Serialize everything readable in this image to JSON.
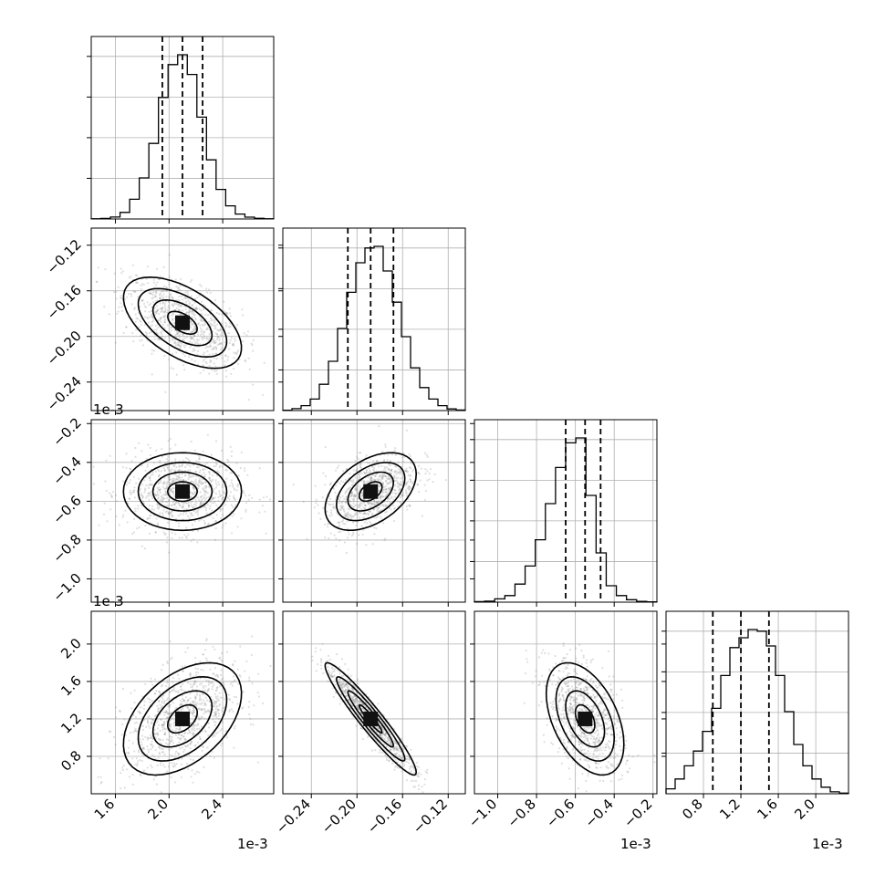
{
  "chart_data": {
    "type": "corner",
    "parameters": [
      {
        "mean": 0.0021,
        "sd": 0.00022,
        "range": [
          0.00142,
          0.00278
        ],
        "ticks": [
          0.0016,
          0.002,
          0.0024
        ],
        "tick_labels": [
          "1.6",
          "2.0",
          "2.4"
        ],
        "offset_label": "1e-3"
      },
      {
        "mean": -0.188,
        "sd": 0.02,
        "range": [
          -0.265,
          -0.105
        ],
        "ticks": [
          -0.24,
          -0.2,
          -0.16,
          -0.12
        ],
        "tick_labels": [
          "−0.24",
          "−0.20",
          "−0.16",
          "−0.12"
        ],
        "offset_label": ""
      },
      {
        "mean": -0.00055,
        "sd": 0.0001,
        "range": [
          -0.00112,
          -0.00018
        ],
        "ticks": [
          -0.001,
          -0.0008,
          -0.0006,
          -0.0004,
          -0.0002
        ],
        "tick_labels": [
          "−1.0",
          "−0.8",
          "−0.6",
          "−0.4",
          "−0.2"
        ],
        "offset_label": "1e-3"
      },
      {
        "mean": 0.0012,
        "sd": 0.0003,
        "range": [
          0.0004,
          0.00235
        ],
        "ticks": [
          0.0008,
          0.0012,
          0.0016,
          0.002
        ],
        "tick_labels": [
          "0.8",
          "1.2",
          "1.6",
          "2.0"
        ],
        "offset_label": "1e-3"
      }
    ],
    "quantiles": [
      0.16,
      0.5,
      0.84
    ],
    "quantile_values": [
      [
        0.00195,
        0.0021,
        0.00225
      ],
      [
        -0.208,
        -0.188,
        -0.168
      ],
      [
        -0.00065,
        -0.00055,
        -0.00047
      ],
      [
        0.0009,
        0.0012,
        0.0015
      ]
    ],
    "histograms": [
      [
        0.001,
        0.003,
        0.012,
        0.04,
        0.12,
        0.25,
        0.46,
        0.74,
        0.94,
        1.0,
        0.88,
        0.62,
        0.36,
        0.18,
        0.08,
        0.03,
        0.011,
        0.004,
        0.001
      ],
      [
        0.002,
        0.012,
        0.03,
        0.07,
        0.16,
        0.3,
        0.5,
        0.72,
        0.9,
        0.99,
        1.0,
        0.85,
        0.66,
        0.45,
        0.26,
        0.14,
        0.07,
        0.03,
        0.01,
        0.003
      ],
      [
        0.003,
        0.006,
        0.02,
        0.04,
        0.11,
        0.22,
        0.38,
        0.6,
        0.82,
        0.97,
        1.0,
        0.65,
        0.3,
        0.1,
        0.04,
        0.015,
        0.005,
        0.002
      ],
      [
        0.03,
        0.09,
        0.17,
        0.26,
        0.38,
        0.52,
        0.72,
        0.89,
        0.95,
        1.0,
        0.99,
        0.9,
        0.72,
        0.5,
        0.3,
        0.17,
        0.09,
        0.04,
        0.012,
        0.004
      ]
    ],
    "correlations": [
      [
        1,
        -0.55,
        0.0,
        0.45
      ],
      [
        -0.55,
        1,
        0.45,
        -0.95
      ],
      [
        0.0,
        0.45,
        1,
        -0.45
      ],
      [
        0.45,
        -0.95,
        -0.45,
        1
      ]
    ],
    "grid": true,
    "levels_sigma": [
      0.5,
      1.0,
      1.5,
      2.0
    ]
  }
}
